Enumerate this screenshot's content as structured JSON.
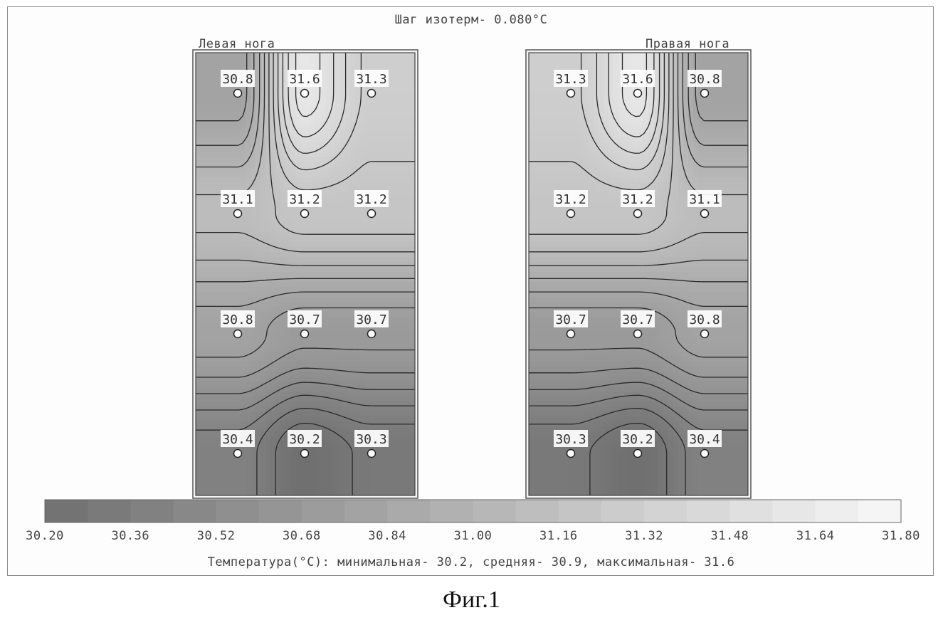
{
  "chart_data": {
    "type": "heatmap",
    "title": "Шаг изотерм- 0.080°C",
    "panels": [
      {
        "name": "Левая нога",
        "grid_rows": 4,
        "grid_cols": 3,
        "values": [
          [
            30.8,
            31.6,
            31.3
          ],
          [
            31.1,
            31.2,
            31.2
          ],
          [
            30.8,
            30.7,
            30.7
          ],
          [
            30.4,
            30.2,
            30.3
          ]
        ],
        "labels": [
          [
            "30.8",
            "31.6",
            "31.3"
          ],
          [
            "31.1",
            "31.2",
            "31.2"
          ],
          [
            "30.8",
            "30.7",
            "30.7"
          ],
          [
            "30.4",
            "30.2",
            "30.3"
          ]
        ]
      },
      {
        "name": "Правая нога",
        "grid_rows": 4,
        "grid_cols": 3,
        "values": [
          [
            31.3,
            31.6,
            30.8
          ],
          [
            31.2,
            31.2,
            31.1
          ],
          [
            30.7,
            30.7,
            30.8
          ],
          [
            30.3,
            30.2,
            30.4
          ]
        ],
        "labels": [
          [
            "31.3",
            "31.6",
            "30.8"
          ],
          [
            "31.2",
            "31.2",
            "31.1"
          ],
          [
            "30.7",
            "30.7",
            "30.8"
          ],
          [
            "30.3",
            "30.2",
            "30.4"
          ]
        ]
      }
    ],
    "isotherm_step": 0.08,
    "colorbar": {
      "range": [
        30.2,
        31.8
      ],
      "ticks": [
        "30.20",
        "30.36",
        "30.52",
        "30.68",
        "30.84",
        "31.00",
        "31.16",
        "31.32",
        "31.48",
        "31.64",
        "31.80"
      ]
    },
    "summary": "Температура(°C): минимальная-   30.2,  средняя-   30.9,  максимальная-   31.6",
    "stats": {
      "min": 30.2,
      "mean": 30.9,
      "max": 31.6
    }
  },
  "caption": "Фиг.1"
}
